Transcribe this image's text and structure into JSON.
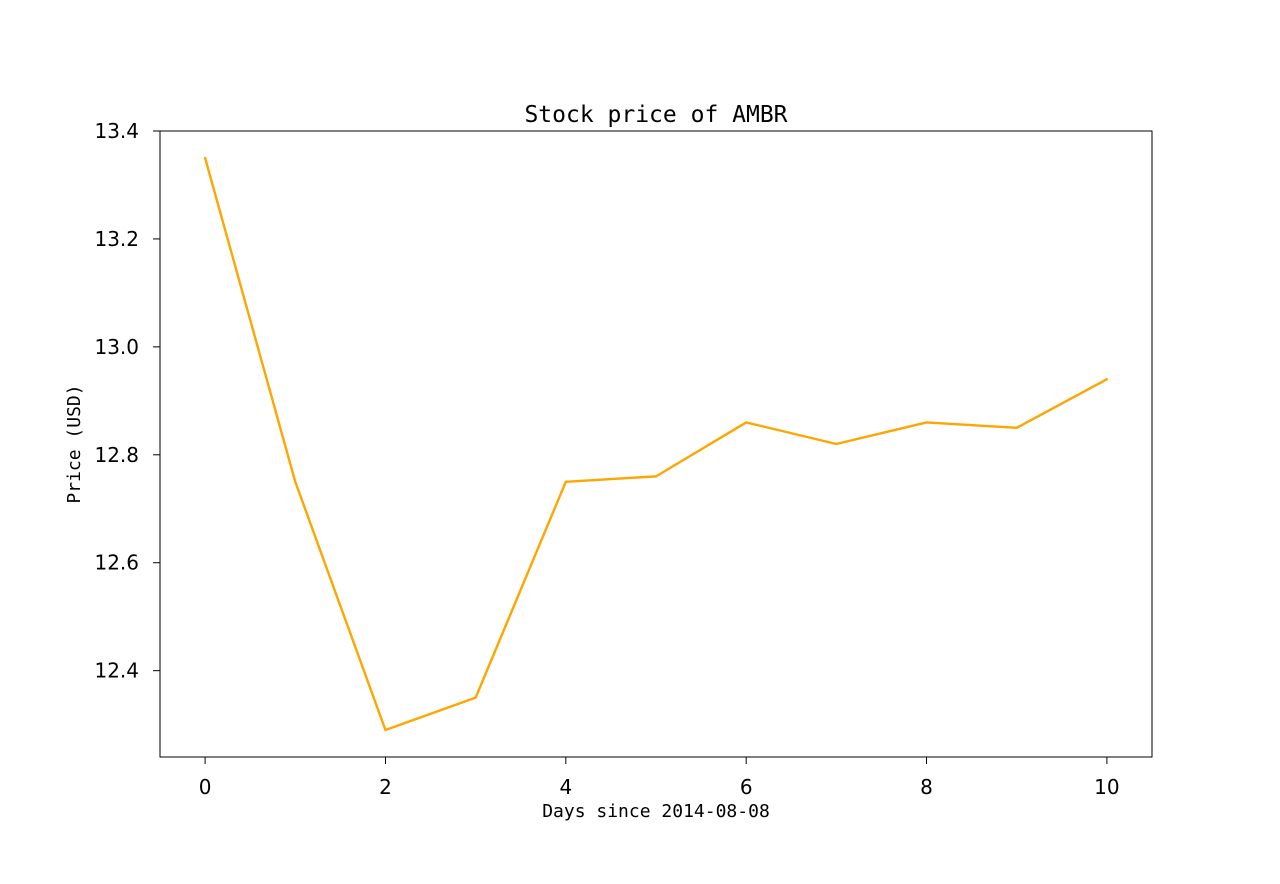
{
  "chart_data": {
    "type": "line",
    "title": "Stock price of AMBR",
    "xlabel": "Days since 2014-08-08",
    "ylabel": "Price (USD)",
    "x": [
      0,
      1,
      2,
      3,
      4,
      5,
      6,
      7,
      8,
      9,
      10
    ],
    "series": [
      {
        "values": [
          13.35,
          12.75,
          12.29,
          12.35,
          12.75,
          12.76,
          12.86,
          12.82,
          12.86,
          12.85,
          12.94
        ],
        "color": "#FFA500"
      }
    ],
    "xlim": [
      -0.5,
      10.5
    ],
    "ylim": [
      12.24,
      13.4
    ],
    "xticks": [
      "0",
      "2",
      "4",
      "6",
      "8",
      "10"
    ],
    "yticks": [
      "12.4",
      "12.6",
      "12.8",
      "13.0",
      "13.2",
      "13.4"
    ],
    "grid": false,
    "legend": false
  }
}
